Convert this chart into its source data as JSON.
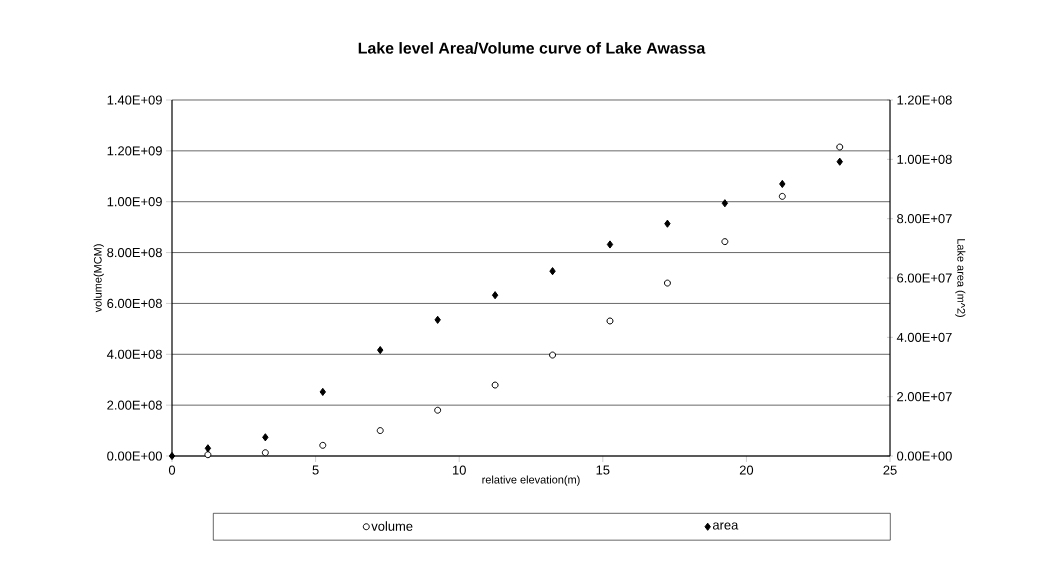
{
  "chart_data": {
    "type": "scatter",
    "title": "Lake level Area/Volume curve of Lake Awassa",
    "xlabel": "relative elevation(m)",
    "ylabel": "volume(MCM)",
    "y2label": "Lake area (m^2)",
    "x": [
      0,
      1.25,
      3.25,
      5.25,
      7.25,
      9.25,
      11.25,
      13.25,
      15.25,
      17.25,
      19.25,
      21.25,
      23.25
    ],
    "series": [
      {
        "name": "volume",
        "color": "#000000",
        "marker": "circle",
        "values": [
          null,
          5000000,
          13000000,
          42000000,
          100000000,
          180000000,
          279000000,
          397000000,
          531000000,
          680000000,
          843000000,
          1021000000,
          1215000000
        ]
      },
      {
        "name": "area",
        "color": "#000000",
        "marker": "diamond",
        "axis": "y2",
        "values": [
          0,
          2600000,
          6300000,
          21600000,
          35700000,
          45900000,
          54200000,
          62300000,
          71300000,
          78300000,
          85200000,
          91700000,
          99200000
        ]
      }
    ],
    "xlim": [
      0,
      25
    ],
    "xticks": [
      0,
      5,
      10,
      15,
      20,
      25
    ],
    "ylim": [
      0,
      1400000000
    ],
    "yticks": [
      {
        "value": 0,
        "label": "0.00E+00"
      },
      {
        "value": 200000000,
        "label": "2.00E+08"
      },
      {
        "value": 400000000,
        "label": "4.00E+08"
      },
      {
        "value": 600000000,
        "label": "6.00E+08"
      },
      {
        "value": 800000000,
        "label": "8.00E+08"
      },
      {
        "value": 1000000000,
        "label": "1.00E+09"
      },
      {
        "value": 1200000000,
        "label": "1.20E+09"
      },
      {
        "value": 1400000000,
        "label": "1.40E+09"
      }
    ],
    "y2lim": [
      0,
      120000000
    ],
    "y2ticks": [
      {
        "value": 0,
        "label": "0.00E+00"
      },
      {
        "value": 20000000,
        "label": "2.00E+07"
      },
      {
        "value": 40000000,
        "label": "4.00E+07"
      },
      {
        "value": 60000000,
        "label": "6.00E+07"
      },
      {
        "value": 80000000,
        "label": "8.00E+07"
      },
      {
        "value": 100000000,
        "label": "1.00E+08"
      },
      {
        "value": 120000000,
        "label": "1.20E+08"
      }
    ],
    "grid": "y",
    "legend": "bottom"
  }
}
